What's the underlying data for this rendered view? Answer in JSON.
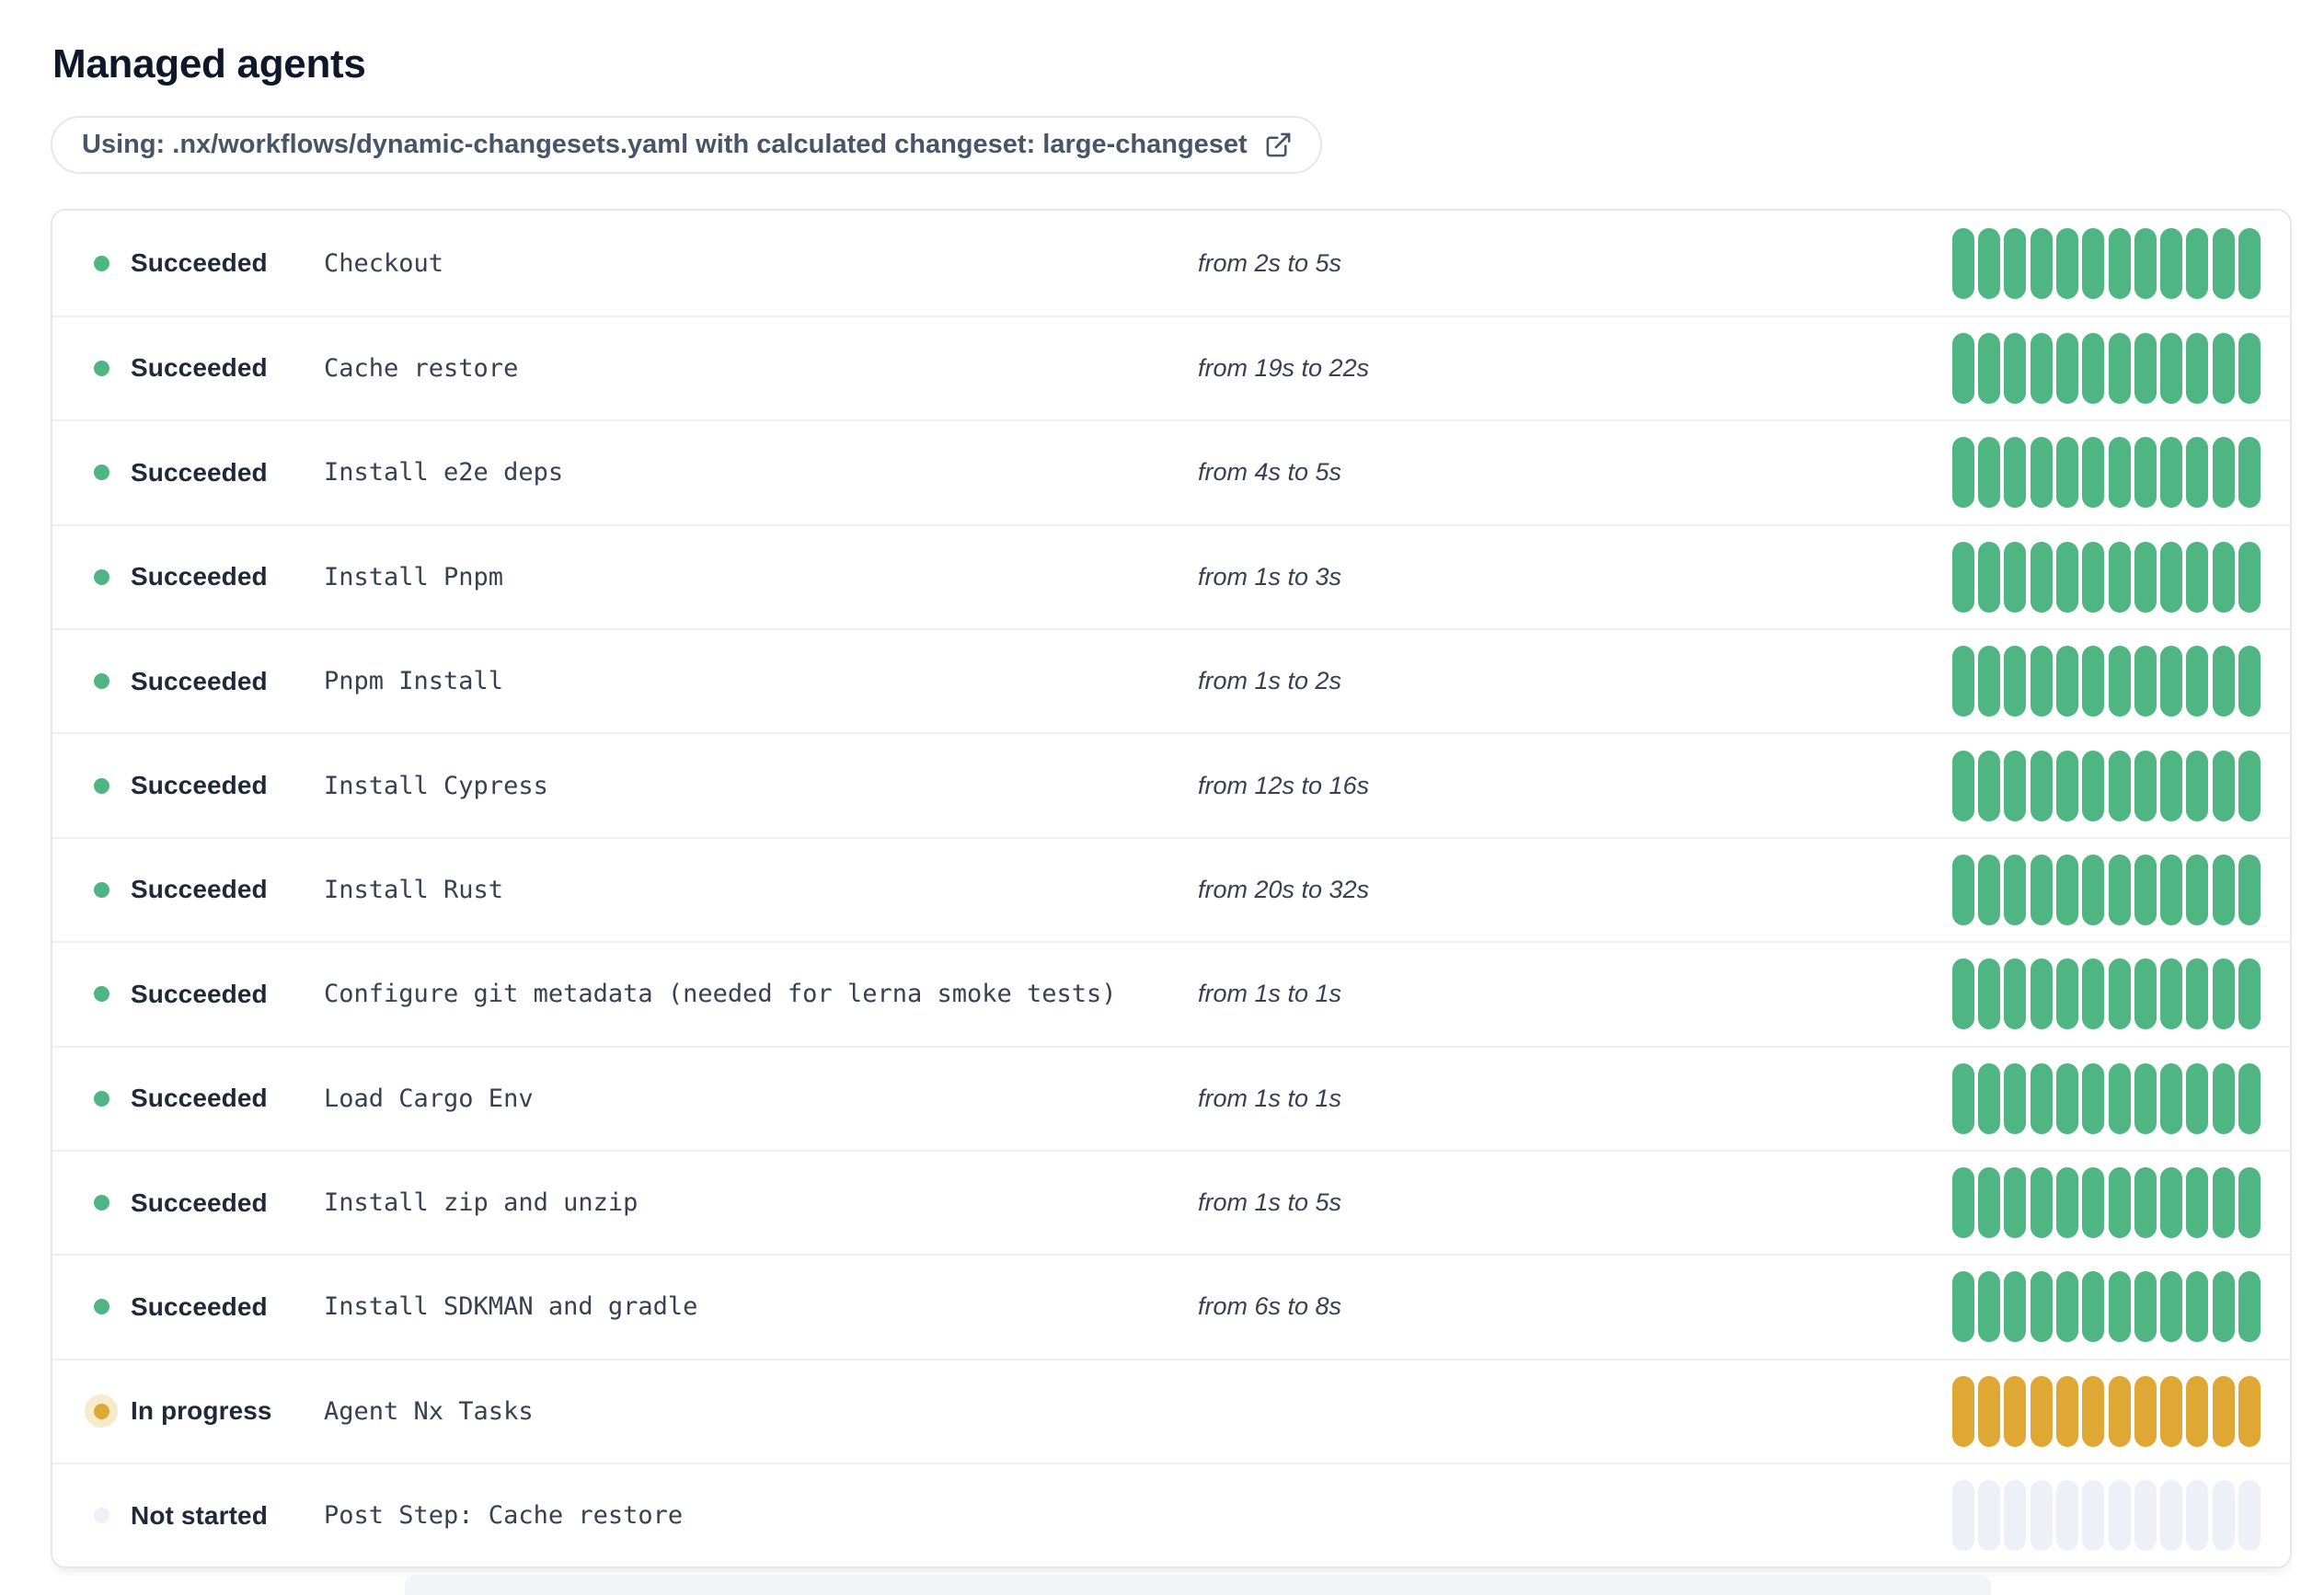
{
  "page": {
    "title": "Managed agents"
  },
  "banner": {
    "label": "Using: .nx/workflows/dynamic-changesets.yaml with calculated changeset: large-changeset",
    "icon": "external-link-icon"
  },
  "colors": {
    "succeeded": "#4fb583",
    "in-progress": "#dfa733",
    "in-progress-halo": "#f7ebce",
    "not-started": "#edf1f7",
    "status-text": "#1f2937"
  },
  "agents": {
    "segments_per_row": 12,
    "rows": [
      {
        "status": "succeeded",
        "status_label": "Succeeded",
        "step": "Checkout",
        "duration": "from 2s to 5s"
      },
      {
        "status": "succeeded",
        "status_label": "Succeeded",
        "step": "Cache restore",
        "duration": "from 19s to 22s"
      },
      {
        "status": "succeeded",
        "status_label": "Succeeded",
        "step": "Install e2e deps",
        "duration": "from 4s to 5s"
      },
      {
        "status": "succeeded",
        "status_label": "Succeeded",
        "step": "Install Pnpm",
        "duration": "from 1s to 3s"
      },
      {
        "status": "succeeded",
        "status_label": "Succeeded",
        "step": "Pnpm Install",
        "duration": "from 1s to 2s"
      },
      {
        "status": "succeeded",
        "status_label": "Succeeded",
        "step": "Install Cypress",
        "duration": "from 12s to 16s"
      },
      {
        "status": "succeeded",
        "status_label": "Succeeded",
        "step": "Install Rust",
        "duration": "from 20s to 32s"
      },
      {
        "status": "succeeded",
        "status_label": "Succeeded",
        "step": "Configure git metadata (needed for lerna smoke tests)",
        "duration": "from 1s to 1s"
      },
      {
        "status": "succeeded",
        "status_label": "Succeeded",
        "step": "Load Cargo Env",
        "duration": "from 1s to 1s"
      },
      {
        "status": "succeeded",
        "status_label": "Succeeded",
        "step": "Install zip and unzip",
        "duration": "from 1s to 5s"
      },
      {
        "status": "succeeded",
        "status_label": "Succeeded",
        "step": "Install SDKMAN and gradle",
        "duration": "from 6s to 8s"
      },
      {
        "status": "in-progress",
        "status_label": "In progress",
        "step": "Agent Nx Tasks",
        "duration": ""
      },
      {
        "status": "not-started",
        "status_label": "Not started",
        "step": "Post Step: Cache restore",
        "duration": ""
      }
    ]
  }
}
